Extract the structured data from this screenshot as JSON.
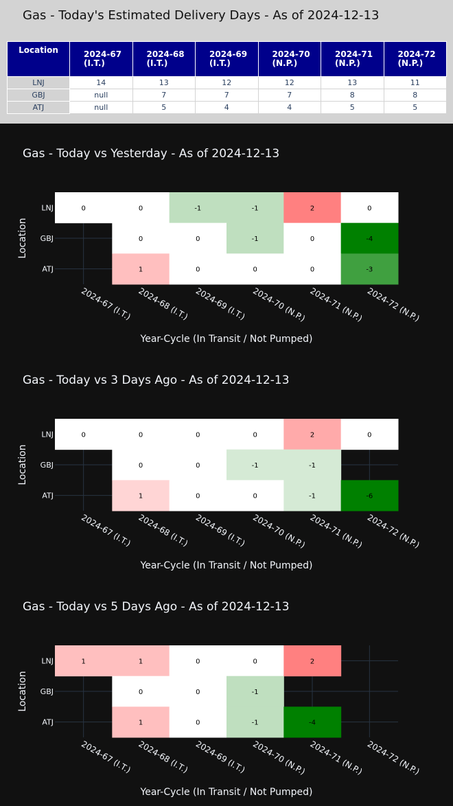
{
  "table": {
    "title": "Gas - Today's Estimated Delivery Days - As of 2024-12-13",
    "header": [
      "Location",
      "2024-67 (I.T.)",
      "2024-68 (I.T.)",
      "2024-69 (I.T.)",
      "2024-70 (N.P.)",
      "2024-71 (N.P.)",
      "2024-72 (N.P.)"
    ],
    "rows": [
      [
        "LNJ",
        "14",
        "13",
        "12",
        "12",
        "13",
        "11"
      ],
      [
        "GBJ",
        "null",
        "7",
        "7",
        "7",
        "8",
        "8"
      ],
      [
        "ATJ",
        "null",
        "5",
        "4",
        "4",
        "5",
        "5"
      ]
    ]
  },
  "chart_data": [
    {
      "type": "heatmap",
      "title": "Gas - Today vs Yesterday - As of 2024-12-13",
      "xlabel": "Year-Cycle (In Transit / Not Pumped)",
      "ylabel": "Location",
      "x": [
        "2024-67 (I.T.)",
        "2024-68 (I.T.)",
        "2024-69 (I.T.)",
        "2024-70 (N.P.)",
        "2024-71 (N.P.)",
        "2024-72 (N.P.)"
      ],
      "y": [
        "LNJ",
        "GBJ",
        "ATJ"
      ],
      "z": [
        [
          0,
          0,
          -1,
          -1,
          2,
          0
        ],
        [
          null,
          0,
          0,
          -1,
          0,
          -4
        ],
        [
          null,
          1,
          0,
          0,
          0,
          -3
        ]
      ],
      "colorscale": {
        "negative_max": "#008000",
        "zero": "#ffffff",
        "positive_max": "#ff0000"
      },
      "grid": true
    },
    {
      "type": "heatmap",
      "title": "Gas - Today vs 3 Days Ago - As of 2024-12-13",
      "xlabel": "Year-Cycle (In Transit / Not Pumped)",
      "ylabel": "Location",
      "x": [
        "2024-67 (I.T.)",
        "2024-68 (I.T.)",
        "2024-69 (I.T.)",
        "2024-70 (N.P.)",
        "2024-71 (N.P.)",
        "2024-72 (N.P.)"
      ],
      "y": [
        "LNJ",
        "GBJ",
        "ATJ"
      ],
      "z": [
        [
          0,
          0,
          0,
          0,
          2,
          0
        ],
        [
          null,
          0,
          0,
          -1,
          -1,
          null
        ],
        [
          null,
          1,
          0,
          0,
          -1,
          -6
        ]
      ],
      "colorscale": {
        "negative_max": "#008000",
        "zero": "#ffffff",
        "positive_max": "#ff0000"
      },
      "grid": true
    },
    {
      "type": "heatmap",
      "title": "Gas - Today vs 5 Days Ago - As of 2024-12-13",
      "xlabel": "Year-Cycle (In Transit / Not Pumped)",
      "ylabel": "Location",
      "x": [
        "2024-67 (I.T.)",
        "2024-68 (I.T.)",
        "2024-69 (I.T.)",
        "2024-70 (N.P.)",
        "2024-71 (N.P.)",
        "2024-72 (N.P.)"
      ],
      "y": [
        "LNJ",
        "GBJ",
        "ATJ"
      ],
      "z": [
        [
          1,
          1,
          0,
          0,
          2,
          null
        ],
        [
          null,
          0,
          0,
          -1,
          null,
          null
        ],
        [
          null,
          1,
          0,
          -1,
          -4,
          null
        ]
      ],
      "colorscale": {
        "negative_max": "#008000",
        "zero": "#ffffff",
        "positive_max": "#ff0000"
      },
      "grid": true
    }
  ]
}
